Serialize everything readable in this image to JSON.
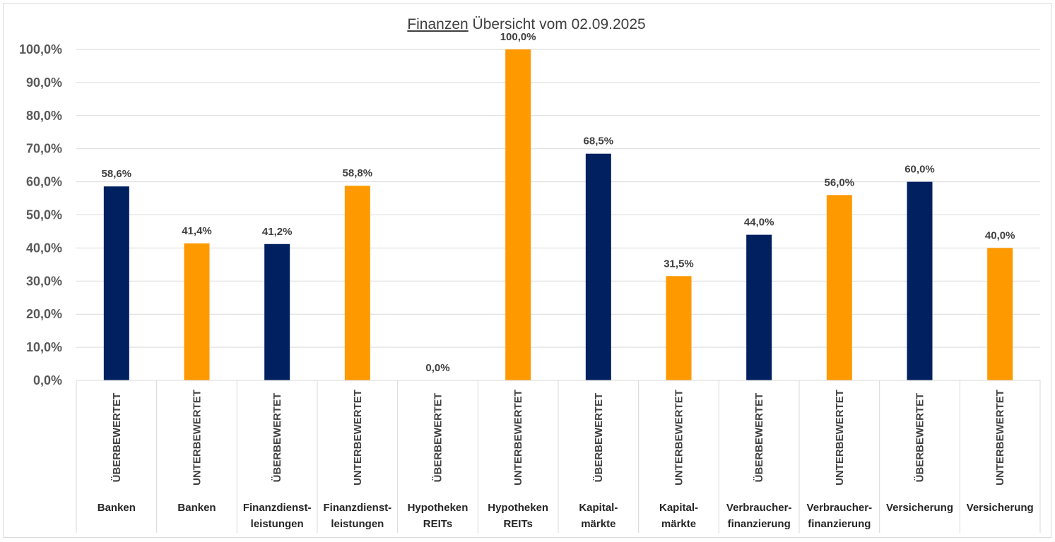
{
  "chart_data": {
    "type": "bar",
    "title": "Finanzen Übersicht vom 02.09.2025",
    "title_parts": {
      "underlined": "Finanzen",
      "rest": " Übersicht vom 02.09.2025"
    },
    "xlabel": "",
    "ylabel": "",
    "ylim": [
      0,
      100
    ],
    "yticks": [
      "0,0%",
      "10,0%",
      "20,0%",
      "30,0%",
      "40,0%",
      "50,0%",
      "60,0%",
      "70,0%",
      "80,0%",
      "90,0%",
      "100,0%"
    ],
    "grid": true,
    "legend": "none",
    "colors": {
      "ueberbewertet": "#002060",
      "unterbewertet": "#FF9900"
    },
    "categories": [
      {
        "status": "ÜBERBEWERTET",
        "sector": [
          "Banken"
        ],
        "value": 58.6,
        "label": "58,6%",
        "color_key": "ueberbewertet"
      },
      {
        "status": "UNTERBEWERTET",
        "sector": [
          "Banken"
        ],
        "value": 41.4,
        "label": "41,4%",
        "color_key": "unterbewertet"
      },
      {
        "status": "ÜBERBEWERTET",
        "sector": [
          "Finanzdienst-",
          "leistungen"
        ],
        "value": 41.2,
        "label": "41,2%",
        "color_key": "ueberbewertet"
      },
      {
        "status": "UNTERBEWERTET",
        "sector": [
          "Finanzdienst-",
          "leistungen"
        ],
        "value": 58.8,
        "label": "58,8%",
        "color_key": "unterbewertet"
      },
      {
        "status": "ÜBERBEWERTET",
        "sector": [
          "Hypotheken",
          "REITs"
        ],
        "value": 0.0,
        "label": "0,0%",
        "color_key": "ueberbewertet"
      },
      {
        "status": "UNTERBEWERTET",
        "sector": [
          "Hypotheken",
          "REITs"
        ],
        "value": 100.0,
        "label": "100,0%",
        "color_key": "unterbewertet"
      },
      {
        "status": "ÜBERBEWERTET",
        "sector": [
          "Kapital-",
          "märkte"
        ],
        "value": 68.5,
        "label": "68,5%",
        "color_key": "ueberbewertet"
      },
      {
        "status": "UNTERBEWERTET",
        "sector": [
          "Kapital-",
          "märkte"
        ],
        "value": 31.5,
        "label": "31,5%",
        "color_key": "unterbewertet"
      },
      {
        "status": "ÜBERBEWERTET",
        "sector": [
          "Verbraucher-",
          "finanzierung"
        ],
        "value": 44.0,
        "label": "44,0%",
        "color_key": "ueberbewertet"
      },
      {
        "status": "UNTERBEWERTET",
        "sector": [
          "Verbraucher-",
          "finanzierung"
        ],
        "value": 56.0,
        "label": "56,0%",
        "color_key": "unterbewertet"
      },
      {
        "status": "ÜBERBEWERTET",
        "sector": [
          "Versicherung"
        ],
        "value": 60.0,
        "label": "60,0%",
        "color_key": "ueberbewertet"
      },
      {
        "status": "UNTERBEWERTET",
        "sector": [
          "Versicherung"
        ],
        "value": 40.0,
        "label": "40,0%",
        "color_key": "unterbewertet"
      }
    ]
  }
}
